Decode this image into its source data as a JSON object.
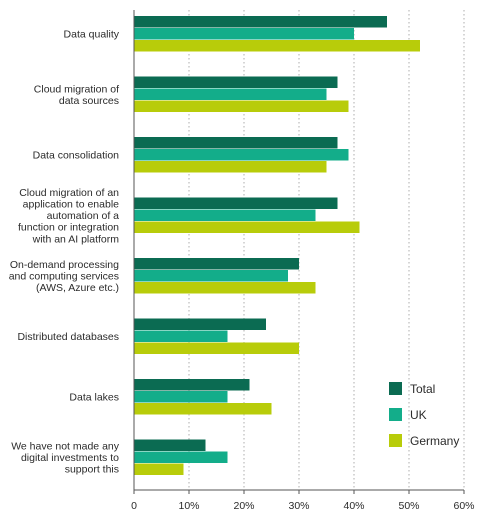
{
  "chart_data": {
    "type": "bar",
    "orientation": "horizontal",
    "categories": [
      [
        "Data quality"
      ],
      [
        "Cloud migration of",
        "data sources"
      ],
      [
        "Data consolidation"
      ],
      [
        "Cloud migration of an",
        "application to enable",
        "automation of a",
        "function or integration",
        "with an AI platform"
      ],
      [
        "On-demand processing",
        "and computing services",
        "(AWS, Azure etc.)"
      ],
      [
        "Distributed databases"
      ],
      [
        "Data lakes"
      ],
      [
        "We have not made any",
        "digital investments to",
        "support this"
      ]
    ],
    "series": [
      {
        "name": "Total",
        "color": "#0b6b52",
        "values": [
          46,
          37,
          37,
          37,
          30,
          24,
          21,
          13
        ]
      },
      {
        "name": "UK",
        "color": "#13ad8a",
        "values": [
          40,
          35,
          39,
          33,
          28,
          17,
          17,
          17
        ]
      },
      {
        "name": "Germany",
        "color": "#b8cc0a",
        "values": [
          52,
          39,
          35,
          41,
          33,
          30,
          25,
          9
        ]
      }
    ],
    "xlim": [
      0,
      60
    ],
    "ticks": [
      0,
      10,
      20,
      30,
      40,
      50,
      60
    ],
    "tick_labels": [
      "0",
      "10%",
      "20%",
      "30%",
      "40%",
      "50%",
      "60%"
    ],
    "grid": "vertical-dashed",
    "legend_position": "bottom-right",
    "title": "",
    "xlabel": "",
    "ylabel": ""
  }
}
